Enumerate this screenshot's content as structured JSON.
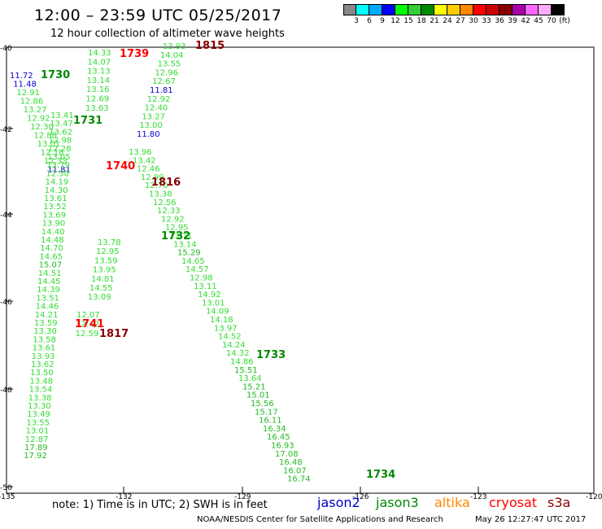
{
  "header": {
    "title": "12:00 – 23:59 UTC 05/25/2017",
    "subtitle": "12 hour collection of altimeter wave heights"
  },
  "legend": {
    "colors": [
      "#888888",
      "#00ffff",
      "#00aaff",
      "#0000ff",
      "#00ff00",
      "#33cc33",
      "#008800",
      "#ffff00",
      "#ffcc00",
      "#ff8800",
      "#ff0000",
      "#cc0000",
      "#880000",
      "#aa00aa",
      "#ff66ff",
      "#ffaaff",
      "#000000"
    ],
    "labels": [
      "3",
      "6",
      "9",
      "12",
      "15",
      "18",
      "21",
      "24",
      "27",
      "30",
      "33",
      "36",
      "39",
      "42",
      "45",
      "70",
      "(ft)"
    ]
  },
  "axes": {
    "lat_ticks": [
      "-40",
      "-42",
      "-44",
      "-46",
      "-48",
      "-50"
    ],
    "lon_ticks": [
      "-135",
      "-132",
      "-129",
      "-126",
      "-123",
      "-120"
    ]
  },
  "tracks": [
    {
      "label": "1730",
      "label_color": "#008800",
      "values": [
        "11.72",
        "11.48",
        "12.91",
        "12.86",
        "13.27",
        "12.92",
        "12.30",
        "12.88",
        "13.01",
        "12.18",
        "12.33",
        "11.81"
      ]
    },
    {
      "label": "1731",
      "label_color": "#008800",
      "values": [
        "13.41",
        "13.47",
        "13.62",
        "12.98",
        "12.28",
        "13.05",
        "13.79",
        "12.50",
        "14.19",
        "14.30",
        "13.61",
        "13.52",
        "13.69",
        "13.90",
        "14.40",
        "14.48",
        "14.70",
        "14.65",
        "15.07",
        "14.51",
        "14.45",
        "14.39",
        "13.51",
        "14.46",
        "14.21",
        "13.59",
        "13.30",
        "13.58",
        "13.61",
        "13.93",
        "13.62",
        "13.50",
        "13.48",
        "13.54",
        "13.38",
        "13.30",
        "13.49",
        "13.55",
        "13.01",
        "12.87",
        "17.89",
        "17.92"
      ]
    },
    {
      "label": "1732",
      "label_color": "#008800",
      "values": [
        "13.96",
        "13.42",
        "12.46",
        "12.99",
        "12.70",
        "13.38",
        "12.56",
        "12.33",
        "12.92",
        "12.95",
        "13.71",
        "13.14",
        "15.29",
        "14.65",
        "14.57",
        "12.98",
        "13.11",
        "14.92",
        "13.01",
        "14.09",
        "14.18",
        "13.97",
        "14.52",
        "14.24",
        "14.32",
        "14.86",
        "15.51",
        "13.64",
        "15.21",
        "15.01",
        "15.56",
        "15.17",
        "16.11",
        "16.34",
        "16.45",
        "16.93",
        "17.08",
        "16.48",
        "16.07",
        "16.74"
      ]
    },
    {
      "label": "1733",
      "label_color": "#008800",
      "values": []
    },
    {
      "label": "1734",
      "label_color": "#008800",
      "values": []
    },
    {
      "label": "1739",
      "label_color": "#ff0000",
      "values": [
        "14.33",
        "14.07",
        "13.13",
        "13.14",
        "13.16",
        "12.69",
        "13.63"
      ]
    },
    {
      "label": "1740",
      "label_color": "#ff0000",
      "values": []
    },
    {
      "label": "1741",
      "label_color": "#ff0000",
      "values": [
        "12.07",
        "12.42",
        "12.59"
      ]
    },
    {
      "label": "1815",
      "label_color": "#880000",
      "values": [
        "13.93",
        "14.04",
        "13.55",
        "12.96",
        "12.67",
        "11.81",
        "12.92",
        "12.40",
        "13.27",
        "13.00",
        "11.80"
      ]
    },
    {
      "label": "1816",
      "label_color": "#880000",
      "values": [
        "13.78",
        "12.95",
        "13.59",
        "13.95",
        "14.81",
        "14.55",
        "13.09"
      ]
    },
    {
      "label": "1817",
      "label_color": "#880000",
      "values": []
    }
  ],
  "footer": {
    "note": "note: 1) Time is in UTC; 2) SWH is in feet",
    "satellites": [
      {
        "name": "jason2",
        "color": "#0000cc"
      },
      {
        "name": "jason3",
        "color": "#008800"
      },
      {
        "name": "altika",
        "color": "#ff8800"
      },
      {
        "name": "cryosat",
        "color": "#ff0000"
      },
      {
        "name": "s3a",
        "color": "#880000"
      }
    ],
    "credit": "NOAA/NESDIS Center for Satellite Applications and Research",
    "timestamp": "May 26 12:27:47 UTC 2017"
  }
}
